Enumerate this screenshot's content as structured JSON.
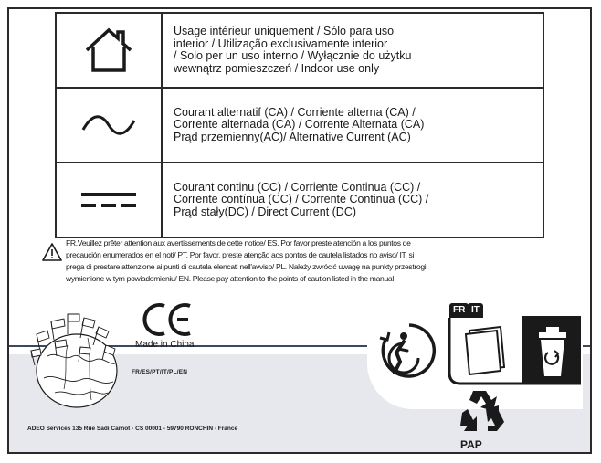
{
  "symbols": [
    {
      "icon": "house-icon",
      "lines": [
        "Usage intérieur uniquement / Sólo para uso",
        "interior / Utilização exclusivamente interior",
        "/ Solo per un uso interno / Wyłącznie do użytku",
        "wewnątrz pomieszczeń / Indoor use only"
      ]
    },
    {
      "icon": "alternating-current-icon",
      "lines": [
        "Courant alternatif (CA) / Corriente alterna (CA) /",
        "Corrente alternada (CA) / Corrente Alternata (CA)",
        "Prąd przemienny(AC)/ Alternative Current (AC)"
      ]
    },
    {
      "icon": "direct-current-icon",
      "lines": [
        "Courant continu (CC) / Corriente Continua (CC) /",
        "Corrente contínua (CC) / Corrente Continua (CC) /",
        "Prąd stały(DC) / Direct Current (DC)"
      ]
    }
  ],
  "warning": {
    "lines": [
      "FR.Veuillez prêter attention aux avertissements de cette notice/ ES. Por favor preste atención a los puntos de",
      "precaución enumerados en el noti/ PT. Por favor, preste atenção aos pontos de cautela listados no aviso/ IT. si",
      "prega di prestare attenzione ai punti di cautela elencati nell'avviso/ PL. Należy zwrócić uwagę na punkty przestrogi",
      "wymienione w tym powiadomieniu/ EN. Please pay attention to the points of caution listed in the manual"
    ]
  },
  "marks": {
    "ce": "CE",
    "made_in": "Made in China",
    "languages": "FR/ES/PT/IT/PL/EN",
    "address": "ADEO Services 135 Rue Sadi Carnot - CS 00001 - 59790 RONCHIN - France"
  },
  "recycling": {
    "badge_fr": "FR",
    "badge_it": "IT",
    "pap_label": "PAP"
  },
  "colors": {
    "band": "#e6e8ed",
    "ink": "#1a1a1a"
  }
}
